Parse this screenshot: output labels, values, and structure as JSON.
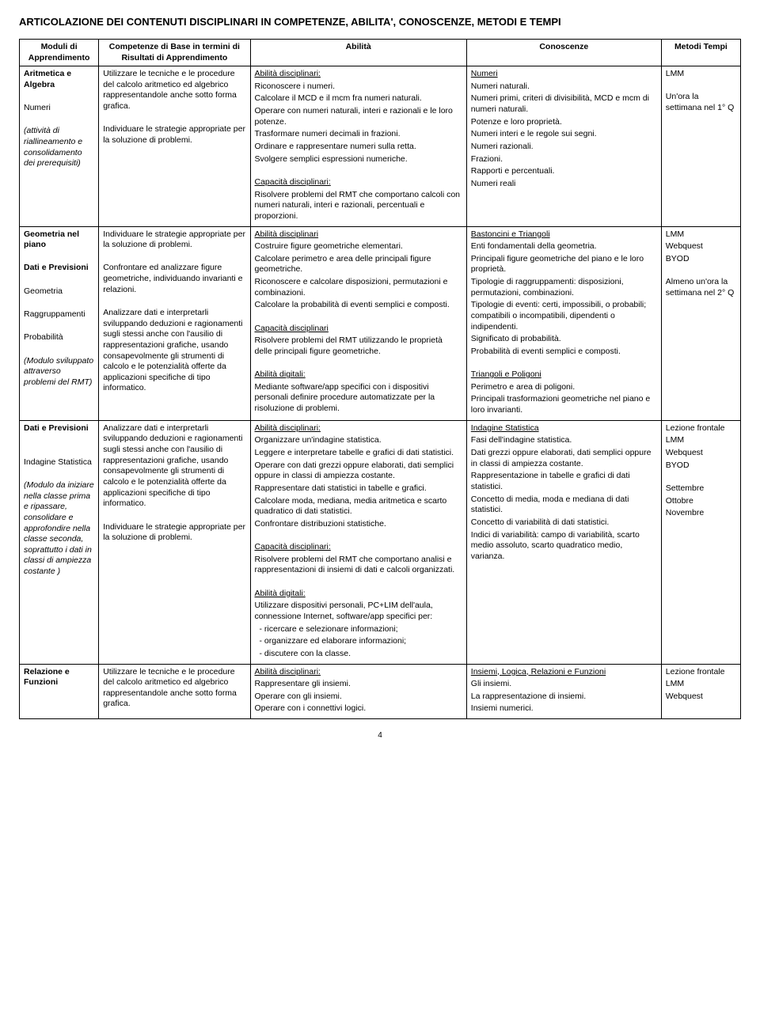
{
  "title": "ARTICOLAZIONE DEI CONTENUTI DISCIPLINARI IN COMPETENZE, ABILITA', CONOSCENZE, METODI E TEMPI",
  "headers": {
    "moduli": "Moduli di Apprendimento",
    "competenze": "Competenze di Base in termini di Risultati di Apprendimento",
    "abilita": "Abilità",
    "conoscenze": "Conoscenze",
    "metodi": "Metodi Tempi"
  },
  "rows": [
    {
      "moduli": {
        "title": "Aritmetica e Algebra",
        "sub1": "Numeri",
        "note": "(attività di riallineamento e consolidamento dei prerequisiti)"
      },
      "competenze": {
        "p1": "Utilizzare le tecniche e le procedure del calcolo aritmetico ed algebrico rappresentandole anche sotto forma grafica.",
        "p2": "Individuare le strategie appropriate per la soluzione di problemi."
      },
      "abilita": {
        "h1": "Abilità disciplinari:",
        "a1": "Riconoscere i numeri.",
        "a2": "Calcolare il MCD e il mcm fra numeri naturali.",
        "a3": "Operare con numeri naturali, interi e razionali e le loro potenze.",
        "a4": "Trasformare numeri decimali in frazioni.",
        "a5": "Ordinare e rappresentare numeri sulla retta.",
        "a6": "Svolgere semplici espressioni numeriche.",
        "h2": "Capacità disciplinari:",
        "c1": "Risolvere problemi del RMT che comportano calcoli con numeri naturali, interi e razionali, percentuali e proporzioni."
      },
      "conoscenze": {
        "h1": "Numeri",
        "c1": "Numeri naturali.",
        "c2": "Numeri primi, criteri di divisibilità, MCD e mcm di numeri naturali.",
        "c3": "Potenze e loro proprietà.",
        "c4": "Numeri interi e le regole sui segni.",
        "c5": "Numeri razionali.",
        "c6": "Frazioni.",
        "c7": "Rapporti e percentuali.",
        "c8": "Numeri reali"
      },
      "metodi": {
        "m1": "LMM",
        "m2": "Un'ora la settimana nel 1° Q"
      }
    },
    {
      "moduli": {
        "title": "Geometria nel piano",
        "sub1": "Dati e Previsioni",
        "sub2": "Geometria",
        "sub3": "Raggruppamenti",
        "sub4": "Probabilità",
        "note": "(Modulo sviluppato attraverso problemi del RMT)"
      },
      "competenze": {
        "p1": "Individuare le strategie appropriate per la soluzione di problemi.",
        "p2": "Confrontare ed analizzare figure geometriche, individuando invarianti e relazioni.",
        "p3": "Analizzare dati e interpretarli sviluppando deduzioni e ragionamenti sugli stessi anche con l'ausilio di rappresentazioni grafiche, usando consapevolmente gli strumenti di calcolo e le potenzialità offerte da applicazioni specifiche di tipo informatico."
      },
      "abilita": {
        "h1": "Abilità disciplinari",
        "a1": "Costruire figure geometriche elementari.",
        "a2": "Calcolare perimetro e area delle principali figure geometriche.",
        "a3": "Riconoscere e calcolare disposizioni, permutazioni e combinazioni.",
        "a4": "Calcolare la probabilità di eventi semplici e composti.",
        "h2": "Capacità disciplinari",
        "c1": "Risolvere problemi del RMT utilizzando le proprietà delle principali figure geometriche.",
        "h3": "Abilità digitali:",
        "d1": "Mediante software/app specifici con i dispositivi personali definire procedure automatizzate per la risoluzione di problemi."
      },
      "conoscenze": {
        "h1": "Bastoncini e Triangoli",
        "c1": "Enti fondamentali della geometria.",
        "c2": "Principali figure geometriche del piano e le loro proprietà.",
        "c3": "Tipologie di raggruppamenti: disposizioni, permutazioni, combinazioni.",
        "c4": "Tipologie di eventi: certi, impossibili, o probabili; compatibili o incompatibili, dipendenti o indipendenti.",
        "c5": "Significato di probabilità.",
        "c6": "Probabilità di eventi semplici e composti.",
        "h2": "Triangoli e Poligoni",
        "c7": "Perimetro e area di poligoni.",
        "c8": "Principali trasformazioni geometriche nel piano e loro invarianti."
      },
      "metodi": {
        "m1": "LMM",
        "m2": "Webquest",
        "m3": "BYOD",
        "m4": "Almeno un'ora la settimana nel 2° Q"
      }
    },
    {
      "moduli": {
        "title": "Dati e Previsioni",
        "sub1": "Indagine Statistica",
        "note": "(Modulo da iniziare nella classe prima e ripassare, consolidare e approfondire nella classe seconda, soprattutto i dati in classi di ampiezza costante )"
      },
      "competenze": {
        "p1": "Analizzare dati e interpretarli sviluppando deduzioni e ragionamenti sugli stessi anche con l'ausilio di rappresentazioni grafiche, usando consapevolmente gli strumenti di calcolo e le potenzialità offerte da applicazioni specifiche di tipo informatico.",
        "p2": "Individuare le strategie appropriate per la soluzione di problemi."
      },
      "abilita": {
        "h1": "Abilità disciplinari:",
        "a1": "Organizzare un'indagine statistica.",
        "a2": "Leggere e interpretare tabelle e grafici di dati statistici.",
        "a3": "Operare con dati grezzi oppure elaborati, dati semplici oppure in classi di ampiezza costante.",
        "a4": "Rappresentare dati statistici in tabelle e grafici.",
        "a5": "Calcolare moda, mediana, media aritmetica e scarto quadratico di dati statistici.",
        "a6": "Confrontare distribuzioni statistiche.",
        "h2": "Capacità disciplinari:",
        "c1": "Risolvere problemi del RMT che comportano analisi e rappresentazioni di insiemi di dati e calcoli organizzati.",
        "h3": "Abilità digitali:",
        "d1": "Utilizzare dispositivi personali, PC+LIM dell'aula, connessione Internet, software/app specifici per:",
        "d2": "ricercare e selezionare informazioni;",
        "d3": "organizzare ed elaborare informazioni;",
        "d4": "discutere con la classe."
      },
      "conoscenze": {
        "h1": "Indagine Statistica",
        "c1": "Fasi dell'indagine statistica.",
        "c2": "Dati grezzi oppure elaborati, dati semplici oppure in classi di ampiezza costante.",
        "c3": "Rappresentazione in tabelle e grafici di dati statistici.",
        "c4": "Concetto di media, moda e mediana di dati statistici.",
        "c5": "Concetto di variabilità di dati statistici.",
        "c6": "Indici di variabilità: campo di variabilità, scarto medio assoluto, scarto quadratico medio, varianza."
      },
      "metodi": {
        "m1": "Lezione frontale",
        "m2": "LMM",
        "m3": "Webquest",
        "m4": "BYOD",
        "m5": "Settembre",
        "m6": "Ottobre",
        "m7": "Novembre"
      }
    },
    {
      "moduli": {
        "title": "Relazione e Funzioni"
      },
      "competenze": {
        "p1": "Utilizzare le tecniche e le procedure del calcolo aritmetico ed algebrico rappresentandole anche sotto forma grafica."
      },
      "abilita": {
        "h1": "Abilità disciplinari:",
        "a1": "Rappresentare gli insiemi.",
        "a2": "Operare con gli insiemi.",
        "a3": "Operare con i connettivi logici."
      },
      "conoscenze": {
        "h1": "Insiemi, Logica, Relazioni e Funzioni",
        "c1": "Gli insiemi.",
        "c2": "La rappresentazione di insiemi.",
        "c3": "Insiemi numerici."
      },
      "metodi": {
        "m1": "Lezione frontale",
        "m2": "LMM",
        "m3": "Webquest"
      }
    }
  ],
  "page_num": "4"
}
